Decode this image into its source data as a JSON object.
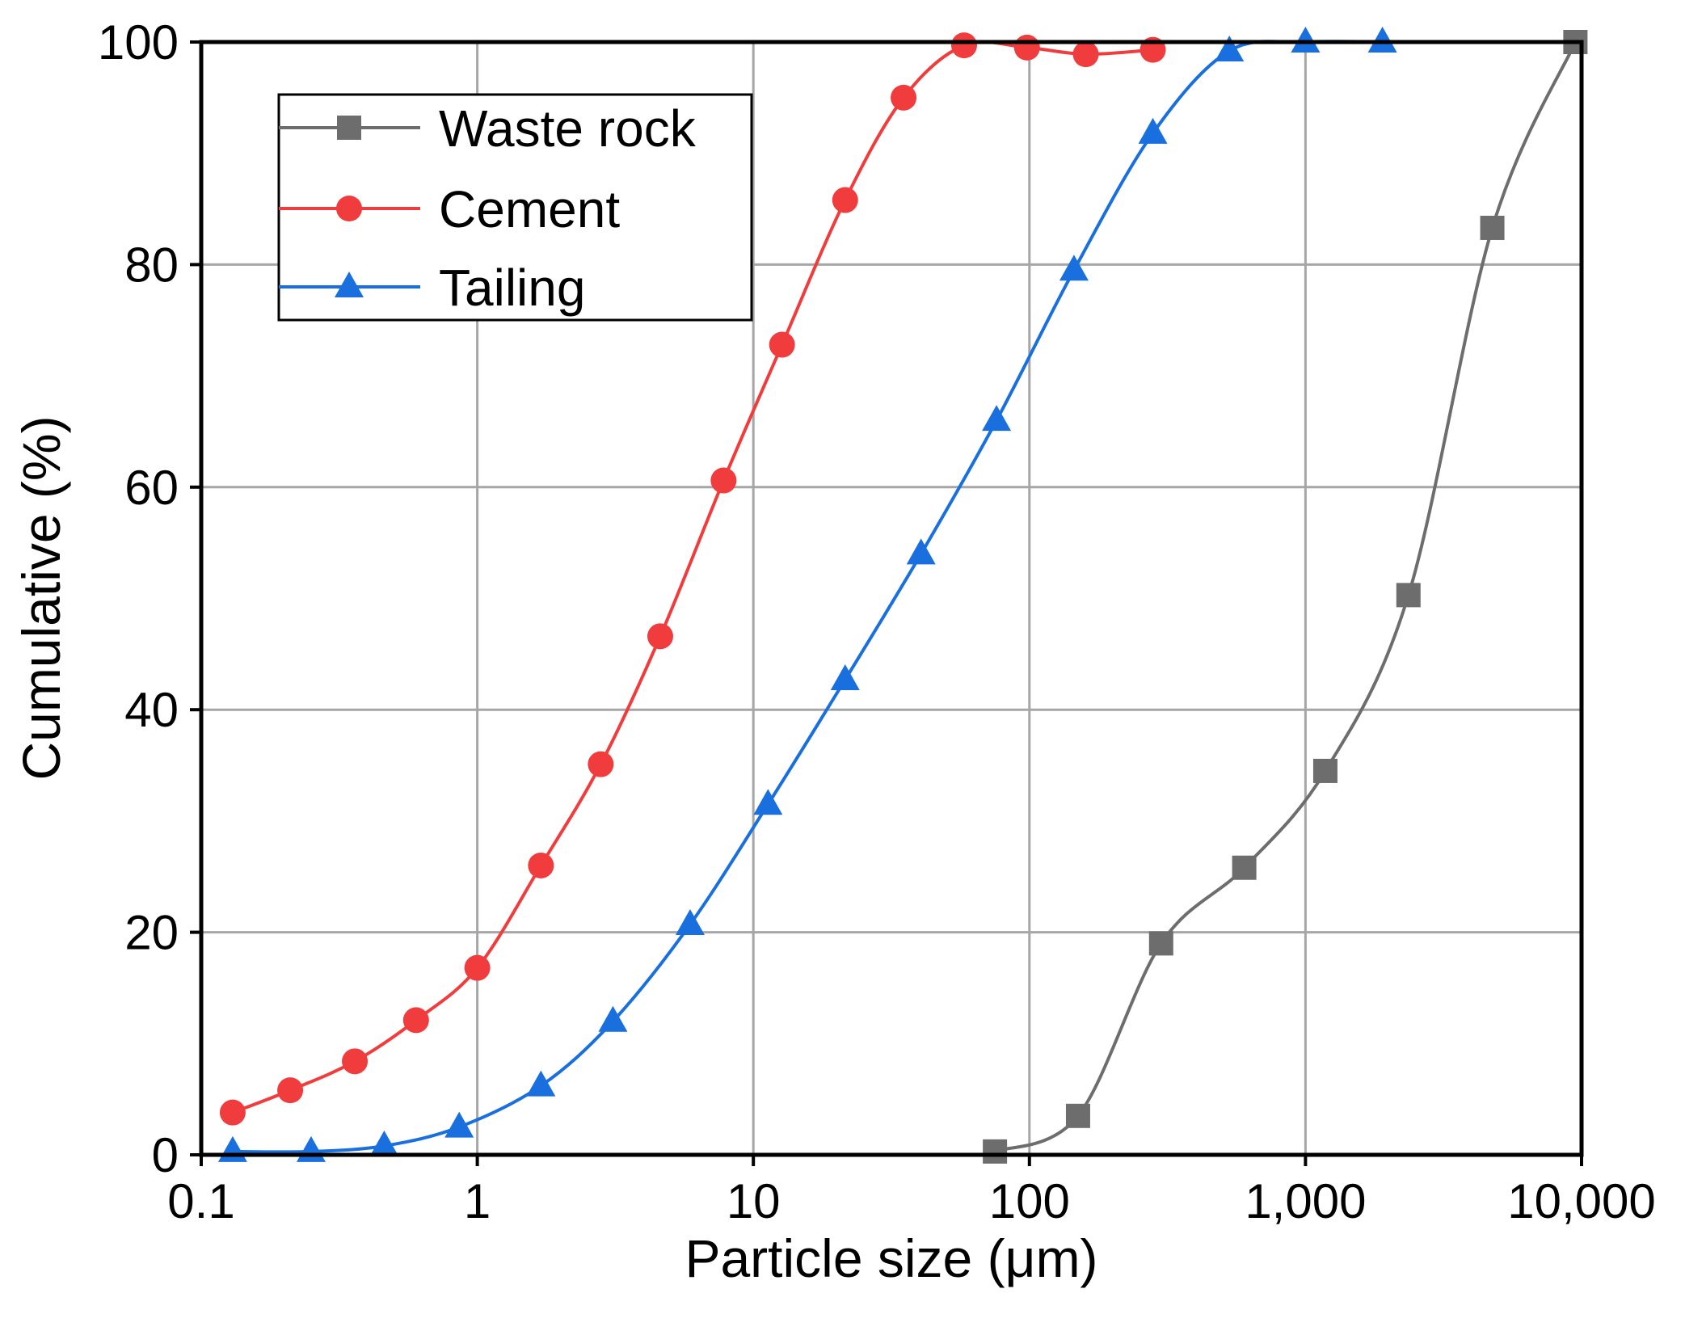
{
  "chart_data": {
    "type": "scatter",
    "title": "",
    "xlabel": "Particle size (μm)",
    "ylabel": "Cumulative (%)",
    "xscale": "log",
    "xlim": [
      0.1,
      10000
    ],
    "ylim": [
      0,
      100
    ],
    "grid": true,
    "legend_position": "top-left",
    "x_ticks": [
      {
        "value": 0.1,
        "label": "0.1"
      },
      {
        "value": 1,
        "label": "1"
      },
      {
        "value": 10,
        "label": "10"
      },
      {
        "value": 100,
        "label": "100"
      },
      {
        "value": 1000,
        "label": "1,000"
      },
      {
        "value": 10000,
        "label": "10,000"
      }
    ],
    "y_ticks": [
      {
        "value": 0,
        "label": "0"
      },
      {
        "value": 20,
        "label": "20"
      },
      {
        "value": 40,
        "label": "40"
      },
      {
        "value": 60,
        "label": "60"
      },
      {
        "value": 80,
        "label": "80"
      },
      {
        "value": 100,
        "label": "100"
      }
    ],
    "series": [
      {
        "name": "Waste rock",
        "color": "#6d6d6d",
        "marker": "square",
        "x": [
          75,
          150,
          300,
          600,
          1180,
          2360,
          4750,
          9500
        ],
        "y": [
          0.3,
          3.5,
          19,
          25.8,
          34.5,
          50.3,
          83.3,
          100
        ]
      },
      {
        "name": "Cement",
        "color": "#f03c3c",
        "marker": "circle",
        "x": [
          0.13,
          0.21,
          0.36,
          0.6,
          1.0,
          1.7,
          2.8,
          4.6,
          7.8,
          12.7,
          21.5,
          35,
          58,
          98,
          160,
          280
        ],
        "y": [
          3.8,
          5.8,
          8.4,
          12.1,
          16.8,
          26,
          35.1,
          46.6,
          60.6,
          72.8,
          85.8,
          95,
          99.7,
          99.5,
          98.9,
          99.3
        ]
      },
      {
        "name": "Tailing",
        "color": "#1a6fdf",
        "marker": "triangle",
        "x": [
          0.13,
          0.25,
          0.46,
          0.86,
          1.7,
          3.1,
          5.9,
          11.3,
          21.5,
          40.5,
          76,
          145,
          280,
          530,
          1000,
          1900
        ],
        "y": [
          0.3,
          0.3,
          0.8,
          2.5,
          6.2,
          12,
          20.7,
          31.5,
          42.7,
          54,
          66,
          79.5,
          91.8,
          99.2,
          100,
          100
        ]
      }
    ]
  }
}
